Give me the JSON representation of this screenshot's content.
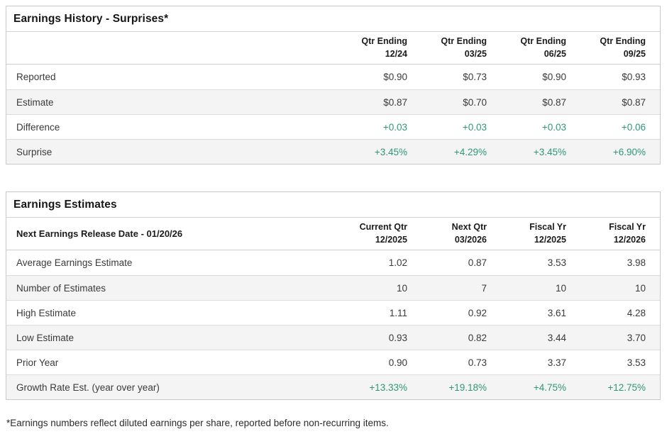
{
  "colors": {
    "positive": "#2e9779"
  },
  "surprises_table": {
    "title": "Earnings History - Surprises*",
    "header_label": "",
    "columns": [
      {
        "line1": "Qtr Ending",
        "line2": "12/24"
      },
      {
        "line1": "Qtr Ending",
        "line2": "03/25"
      },
      {
        "line1": "Qtr Ending",
        "line2": "06/25"
      },
      {
        "line1": "Qtr Ending",
        "line2": "09/25"
      }
    ],
    "rows": [
      {
        "label": "Reported",
        "values": [
          "$0.90",
          "$0.73",
          "$0.90",
          "$0.93"
        ],
        "positive": false
      },
      {
        "label": "Estimate",
        "values": [
          "$0.87",
          "$0.70",
          "$0.87",
          "$0.87"
        ],
        "positive": false
      },
      {
        "label": "Difference",
        "values": [
          "+0.03",
          "+0.03",
          "+0.03",
          "+0.06"
        ],
        "positive": true
      },
      {
        "label": "Surprise",
        "values": [
          "+3.45%",
          "+4.29%",
          "+3.45%",
          "+6.90%"
        ],
        "positive": true
      }
    ]
  },
  "estimates_table": {
    "title": "Earnings Estimates",
    "header_label": "Next Earnings Release Date - 01/20/26",
    "columns": [
      {
        "line1": "Current Qtr",
        "line2": "12/2025"
      },
      {
        "line1": "Next Qtr",
        "line2": "03/2026"
      },
      {
        "line1": "Fiscal Yr",
        "line2": "12/2025"
      },
      {
        "line1": "Fiscal Yr",
        "line2": "12/2026"
      }
    ],
    "rows": [
      {
        "label": "Average Earnings Estimate",
        "values": [
          "1.02",
          "0.87",
          "3.53",
          "3.98"
        ],
        "positive": false
      },
      {
        "label": "Number of Estimates",
        "values": [
          "10",
          "7",
          "10",
          "10"
        ],
        "positive": false
      },
      {
        "label": "High Estimate",
        "values": [
          "1.11",
          "0.92",
          "3.61",
          "4.28"
        ],
        "positive": false
      },
      {
        "label": "Low Estimate",
        "values": [
          "0.93",
          "0.82",
          "3.44",
          "3.70"
        ],
        "positive": false
      },
      {
        "label": "Prior Year",
        "values": [
          "0.90",
          "0.73",
          "3.37",
          "3.53"
        ],
        "positive": false
      },
      {
        "label": "Growth Rate Est. (year over year)",
        "values": [
          "+13.33%",
          "+19.18%",
          "+4.75%",
          "+12.75%"
        ],
        "positive": true
      }
    ]
  },
  "footnote": "*Earnings numbers reflect diluted earnings per share, reported before non-recurring items."
}
